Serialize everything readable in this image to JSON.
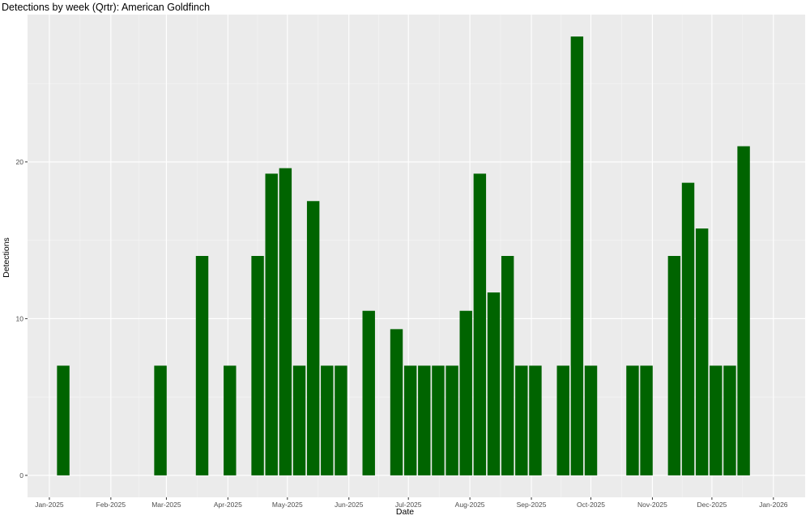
{
  "chart_data": {
    "type": "bar",
    "title": "Detections by week (Qrtr): American Goldfinch",
    "xlabel": "Date",
    "ylabel": "Detections",
    "colors": {
      "bar": "#006400",
      "panel": "#ebebeb",
      "grid": "#ffffff"
    },
    "x_range": [
      "2024-12-21",
      "2026-01-17"
    ],
    "ylim": [
      -1.4,
      29.4
    ],
    "y_ticks": [
      0,
      10,
      20
    ],
    "x_ticks": [
      {
        "date": "2025-01-01",
        "label": "Jan-2025"
      },
      {
        "date": "2025-02-01",
        "label": "Feb-2025"
      },
      {
        "date": "2025-03-01",
        "label": "Mar-2025"
      },
      {
        "date": "2025-04-01",
        "label": "Apr-2025"
      },
      {
        "date": "2025-05-01",
        "label": "May-2025"
      },
      {
        "date": "2025-06-01",
        "label": "Jun-2025"
      },
      {
        "date": "2025-07-01",
        "label": "Jul-2025"
      },
      {
        "date": "2025-08-01",
        "label": "Aug-2025"
      },
      {
        "date": "2025-09-01",
        "label": "Sep-2025"
      },
      {
        "date": "2025-10-01",
        "label": "Oct-2025"
      },
      {
        "date": "2025-11-01",
        "label": "Nov-2025"
      },
      {
        "date": "2025-12-01",
        "label": "Dec-2025"
      },
      {
        "date": "2026-01-01",
        "label": "Jan-2026"
      }
    ],
    "grid": true,
    "legend": "none",
    "bars": [
      {
        "week": "2025-01-08",
        "value": 7
      },
      {
        "week": "2025-02-26",
        "value": 7
      },
      {
        "week": "2025-03-19",
        "value": 14
      },
      {
        "week": "2025-04-02",
        "value": 7
      },
      {
        "week": "2025-04-16",
        "value": 14
      },
      {
        "week": "2025-04-23",
        "value": 19.25
      },
      {
        "week": "2025-04-30",
        "value": 19.6
      },
      {
        "week": "2025-05-07",
        "value": 7
      },
      {
        "week": "2025-05-14",
        "value": 17.5
      },
      {
        "week": "2025-05-21",
        "value": 7
      },
      {
        "week": "2025-05-28",
        "value": 7
      },
      {
        "week": "2025-06-11",
        "value": 10.5
      },
      {
        "week": "2025-06-25",
        "value": 9.33
      },
      {
        "week": "2025-07-02",
        "value": 7
      },
      {
        "week": "2025-07-09",
        "value": 7
      },
      {
        "week": "2025-07-16",
        "value": 7
      },
      {
        "week": "2025-07-23",
        "value": 7
      },
      {
        "week": "2025-07-30",
        "value": 10.5
      },
      {
        "week": "2025-08-06",
        "value": 19.25
      },
      {
        "week": "2025-08-13",
        "value": 11.67
      },
      {
        "week": "2025-08-20",
        "value": 14
      },
      {
        "week": "2025-08-27",
        "value": 7
      },
      {
        "week": "2025-09-03",
        "value": 7
      },
      {
        "week": "2025-09-17",
        "value": 7
      },
      {
        "week": "2025-09-24",
        "value": 28
      },
      {
        "week": "2025-10-01",
        "value": 7
      },
      {
        "week": "2025-10-22",
        "value": 7
      },
      {
        "week": "2025-10-29",
        "value": 7
      },
      {
        "week": "2025-11-12",
        "value": 14
      },
      {
        "week": "2025-11-19",
        "value": 18.67
      },
      {
        "week": "2025-11-26",
        "value": 15.75
      },
      {
        "week": "2025-12-03",
        "value": 7
      },
      {
        "week": "2025-12-10",
        "value": 7
      },
      {
        "week": "2025-12-17",
        "value": 21
      }
    ]
  }
}
